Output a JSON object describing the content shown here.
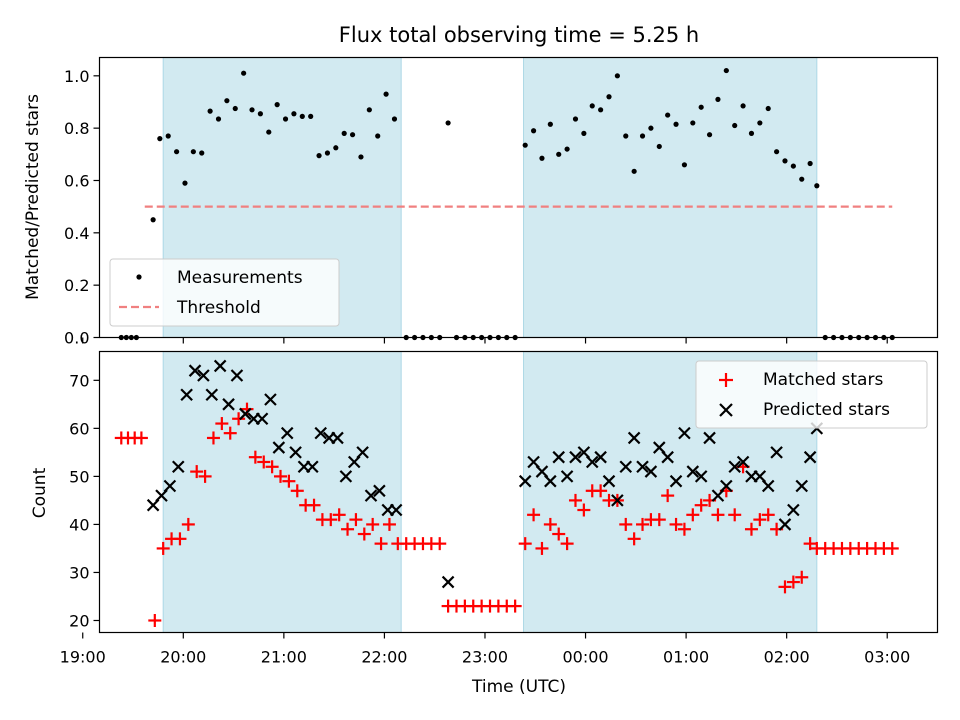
{
  "colors": {
    "background": "#ffffff",
    "shade": "#add8e6",
    "measurements": "#000000",
    "threshold": "#f08080",
    "matched": "#ff0000",
    "predicted": "#000000",
    "legend_border": "#cccccc"
  },
  "chart_data": [
    {
      "type": "scatter",
      "title": "Flux total observing time = 5.25 h",
      "xlabel": "",
      "ylabel": "Matched/Predicted stars",
      "xlim": [
        "19:10",
        "03:30"
      ],
      "ylim": [
        0,
        1.07
      ],
      "yticks": [
        "0.0",
        "0.2",
        "0.4",
        "0.6",
        "0.8",
        "1.0"
      ],
      "grid": false,
      "legend": "lower-left",
      "shaded_intervals": [
        [
          "19:48",
          "22:10"
        ],
        [
          "23:23",
          "02:18"
        ]
      ],
      "threshold": {
        "name": "Threshold",
        "value": 0.5,
        "x": [
          "19:37",
          "03:03"
        ],
        "style": "dashed"
      },
      "series": [
        {
          "name": "Measurements",
          "marker": "dot",
          "points": [
            [
              "19:23",
              0
            ],
            [
              "19:26",
              0
            ],
            [
              "19:29",
              0
            ],
            [
              "19:32",
              0
            ],
            [
              "19:42",
              0.45
            ],
            [
              "19:46",
              0.76
            ],
            [
              "19:51",
              0.77
            ],
            [
              "19:56",
              0.71
            ],
            [
              "20:01",
              0.59
            ],
            [
              "20:06",
              0.71
            ],
            [
              "20:11",
              0.705
            ],
            [
              "20:16",
              0.865
            ],
            [
              "20:21",
              0.835
            ],
            [
              "20:26",
              0.905
            ],
            [
              "20:31",
              0.875
            ],
            [
              "20:36",
              1.01
            ],
            [
              "20:41",
              0.87
            ],
            [
              "20:46",
              0.855
            ],
            [
              "20:51",
              0.785
            ],
            [
              "20:56",
              0.89
            ],
            [
              "21:01",
              0.835
            ],
            [
              "21:06",
              0.855
            ],
            [
              "21:11",
              0.845
            ],
            [
              "21:16",
              0.845
            ],
            [
              "21:21",
              0.695
            ],
            [
              "21:26",
              0.705
            ],
            [
              "21:31",
              0.725
            ],
            [
              "21:36",
              0.78
            ],
            [
              "21:41",
              0.775
            ],
            [
              "21:46",
              0.69
            ],
            [
              "21:51",
              0.87
            ],
            [
              "21:56",
              0.77
            ],
            [
              "22:01",
              0.93
            ],
            [
              "22:06",
              0.835
            ],
            [
              "22:13",
              0
            ],
            [
              "22:18",
              0
            ],
            [
              "22:23",
              0
            ],
            [
              "22:28",
              0
            ],
            [
              "22:33",
              0
            ],
            [
              "22:38",
              0.82
            ],
            [
              "22:43",
              0
            ],
            [
              "22:48",
              0
            ],
            [
              "22:53",
              0
            ],
            [
              "22:58",
              0
            ],
            [
              "23:03",
              0
            ],
            [
              "23:08",
              0
            ],
            [
              "23:13",
              0
            ],
            [
              "23:18",
              0
            ],
            [
              "23:24",
              0.735
            ],
            [
              "23:29",
              0.79
            ],
            [
              "23:34",
              0.685
            ],
            [
              "23:39",
              0.815
            ],
            [
              "23:44",
              0.7
            ],
            [
              "23:49",
              0.72
            ],
            [
              "23:54",
              0.835
            ],
            [
              "23:59",
              0.78
            ],
            [
              "00:04",
              0.885
            ],
            [
              "00:09",
              0.87
            ],
            [
              "00:14",
              0.92
            ],
            [
              "00:19",
              1.0
            ],
            [
              "00:24",
              0.77
            ],
            [
              "00:29",
              0.635
            ],
            [
              "00:34",
              0.77
            ],
            [
              "00:39",
              0.8
            ],
            [
              "00:44",
              0.73
            ],
            [
              "00:49",
              0.85
            ],
            [
              "00:54",
              0.815
            ],
            [
              "00:59",
              0.66
            ],
            [
              "01:04",
              0.82
            ],
            [
              "01:09",
              0.88
            ],
            [
              "01:14",
              0.775
            ],
            [
              "01:19",
              0.91
            ],
            [
              "01:24",
              1.02
            ],
            [
              "01:29",
              0.81
            ],
            [
              "01:34",
              0.885
            ],
            [
              "01:39",
              0.78
            ],
            [
              "01:44",
              0.82
            ],
            [
              "01:49",
              0.875
            ],
            [
              "01:54",
              0.71
            ],
            [
              "01:59",
              0.675
            ],
            [
              "02:04",
              0.655
            ],
            [
              "02:09",
              0.605
            ],
            [
              "02:14",
              0.665
            ],
            [
              "02:18",
              0.58
            ],
            [
              "02:23",
              0
            ],
            [
              "02:28",
              0
            ],
            [
              "02:33",
              0
            ],
            [
              "02:38",
              0
            ],
            [
              "02:43",
              0
            ],
            [
              "02:48",
              0
            ],
            [
              "02:53",
              0
            ],
            [
              "02:58",
              0
            ],
            [
              "03:03",
              0
            ]
          ]
        }
      ]
    },
    {
      "type": "scatter",
      "title": "",
      "xlabel": "Time (UTC)",
      "ylabel": "Count",
      "xlim": [
        "19:10",
        "03:30"
      ],
      "ylim": [
        17.5,
        76
      ],
      "yticks": [
        20,
        30,
        40,
        50,
        60,
        70
      ],
      "xticks": [
        "19:00",
        "20:00",
        "21:00",
        "22:00",
        "23:00",
        "00:00",
        "01:00",
        "02:00",
        "03:00"
      ],
      "grid": false,
      "legend": "upper-right",
      "shaded_intervals": [
        [
          "19:48",
          "22:10"
        ],
        [
          "23:23",
          "02:18"
        ]
      ],
      "series": [
        {
          "name": "Matched stars",
          "marker": "plus",
          "points": [
            [
              "19:23",
              58
            ],
            [
              "19:27",
              58
            ],
            [
              "19:31",
              58
            ],
            [
              "19:35",
              58
            ],
            [
              "19:43",
              20
            ],
            [
              "19:48",
              35
            ],
            [
              "19:53",
              37
            ],
            [
              "19:58",
              37
            ],
            [
              "20:03",
              40
            ],
            [
              "20:08",
              51
            ],
            [
              "20:13",
              50
            ],
            [
              "20:18",
              58
            ],
            [
              "20:23",
              61
            ],
            [
              "20:28",
              59
            ],
            [
              "20:33",
              62
            ],
            [
              "20:38",
              64
            ],
            [
              "20:43",
              54
            ],
            [
              "20:48",
              53
            ],
            [
              "20:53",
              52
            ],
            [
              "20:58",
              50
            ],
            [
              "21:03",
              49
            ],
            [
              "21:08",
              47
            ],
            [
              "21:13",
              44
            ],
            [
              "21:18",
              44
            ],
            [
              "21:23",
              41
            ],
            [
              "21:28",
              41
            ],
            [
              "21:33",
              42
            ],
            [
              "21:38",
              39
            ],
            [
              "21:43",
              41
            ],
            [
              "21:48",
              38
            ],
            [
              "21:53",
              40
            ],
            [
              "21:58",
              36
            ],
            [
              "22:03",
              40
            ],
            [
              "22:08",
              36
            ],
            [
              "22:13",
              36
            ],
            [
              "22:18",
              36
            ],
            [
              "22:23",
              36
            ],
            [
              "22:28",
              36
            ],
            [
              "22:33",
              36
            ],
            [
              "22:38",
              23
            ],
            [
              "22:43",
              23
            ],
            [
              "22:48",
              23
            ],
            [
              "22:53",
              23
            ],
            [
              "22:58",
              23
            ],
            [
              "23:03",
              23
            ],
            [
              "23:08",
              23
            ],
            [
              "23:13",
              23
            ],
            [
              "23:18",
              23
            ],
            [
              "23:24",
              36
            ],
            [
              "23:29",
              42
            ],
            [
              "23:34",
              35
            ],
            [
              "23:39",
              40
            ],
            [
              "23:44",
              38
            ],
            [
              "23:49",
              36
            ],
            [
              "23:54",
              45
            ],
            [
              "23:59",
              43
            ],
            [
              "00:04",
              47
            ],
            [
              "00:09",
              47
            ],
            [
              "00:14",
              45
            ],
            [
              "00:19",
              45
            ],
            [
              "00:24",
              40
            ],
            [
              "00:29",
              37
            ],
            [
              "00:34",
              40
            ],
            [
              "00:39",
              41
            ],
            [
              "00:44",
              41
            ],
            [
              "00:49",
              46
            ],
            [
              "00:54",
              40
            ],
            [
              "00:59",
              39
            ],
            [
              "01:04",
              42
            ],
            [
              "01:09",
              44
            ],
            [
              "01:14",
              45
            ],
            [
              "01:19",
              42
            ],
            [
              "01:24",
              47
            ],
            [
              "01:29",
              42
            ],
            [
              "01:34",
              52
            ],
            [
              "01:39",
              39
            ],
            [
              "01:44",
              41
            ],
            [
              "01:49",
              42
            ],
            [
              "01:54",
              39
            ],
            [
              "01:59",
              27
            ],
            [
              "02:04",
              28
            ],
            [
              "02:09",
              29
            ],
            [
              "02:14",
              36
            ],
            [
              "02:18",
              35
            ],
            [
              "02:23",
              35
            ],
            [
              "02:28",
              35
            ],
            [
              "02:33",
              35
            ],
            [
              "02:38",
              35
            ],
            [
              "02:43",
              35
            ],
            [
              "02:48",
              35
            ],
            [
              "02:53",
              35
            ],
            [
              "02:58",
              35
            ],
            [
              "03:03",
              35
            ]
          ]
        },
        {
          "name": "Predicted stars",
          "marker": "x",
          "points": [
            [
              "19:42",
              44
            ],
            [
              "19:47",
              46
            ],
            [
              "19:52",
              48
            ],
            [
              "19:57",
              52
            ],
            [
              "20:02",
              67
            ],
            [
              "20:07",
              72
            ],
            [
              "20:12",
              71
            ],
            [
              "20:17",
              67
            ],
            [
              "20:22",
              73
            ],
            [
              "20:27",
              65
            ],
            [
              "20:32",
              71
            ],
            [
              "20:37",
              63
            ],
            [
              "20:42",
              62
            ],
            [
              "20:47",
              62
            ],
            [
              "20:52",
              66
            ],
            [
              "20:57",
              56
            ],
            [
              "21:02",
              59
            ],
            [
              "21:07",
              55
            ],
            [
              "21:12",
              52
            ],
            [
              "21:17",
              52
            ],
            [
              "21:22",
              59
            ],
            [
              "21:27",
              58
            ],
            [
              "21:32",
              58
            ],
            [
              "21:37",
              50
            ],
            [
              "21:42",
              53
            ],
            [
              "21:47",
              55
            ],
            [
              "21:52",
              46
            ],
            [
              "21:57",
              47
            ],
            [
              "22:02",
              43
            ],
            [
              "22:07",
              43
            ],
            [
              "22:38",
              28
            ],
            [
              "23:24",
              49
            ],
            [
              "23:29",
              53
            ],
            [
              "23:34",
              51
            ],
            [
              "23:39",
              49
            ],
            [
              "23:44",
              54
            ],
            [
              "23:49",
              50
            ],
            [
              "23:54",
              54
            ],
            [
              "23:59",
              55
            ],
            [
              "00:04",
              53
            ],
            [
              "00:09",
              54
            ],
            [
              "00:14",
              49
            ],
            [
              "00:19",
              45
            ],
            [
              "00:24",
              52
            ],
            [
              "00:29",
              58
            ],
            [
              "00:34",
              52
            ],
            [
              "00:39",
              51
            ],
            [
              "00:44",
              56
            ],
            [
              "00:49",
              54
            ],
            [
              "00:54",
              49
            ],
            [
              "00:59",
              59
            ],
            [
              "01:04",
              51
            ],
            [
              "01:09",
              50
            ],
            [
              "01:14",
              58
            ],
            [
              "01:19",
              46
            ],
            [
              "01:24",
              48
            ],
            [
              "01:29",
              52
            ],
            [
              "01:34",
              53
            ],
            [
              "01:39",
              50
            ],
            [
              "01:44",
              50
            ],
            [
              "01:49",
              48
            ],
            [
              "01:54",
              55
            ],
            [
              "01:59",
              40
            ],
            [
              "02:04",
              43
            ],
            [
              "02:09",
              48
            ],
            [
              "02:14",
              54
            ],
            [
              "02:18",
              60
            ]
          ]
        }
      ]
    }
  ]
}
